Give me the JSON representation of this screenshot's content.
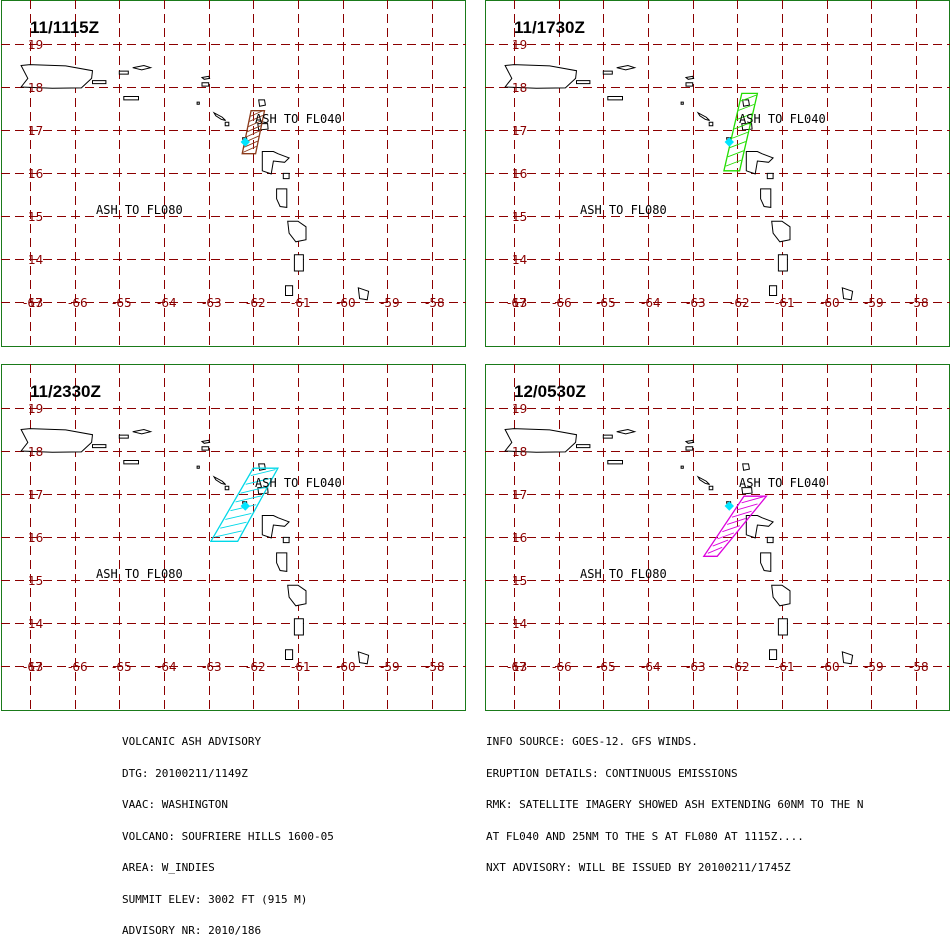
{
  "panels": [
    {
      "time": "11/1115Z",
      "plume_color": "#8b3a1a",
      "plume_name": "ash-plume-brown",
      "plume_quads": [
        [
          [
            -61.95,
            16.45
          ],
          [
            -62.25,
            16.45
          ],
          [
            -62.05,
            17.45
          ],
          [
            -61.75,
            17.45
          ]
        ]
      ],
      "vent_color": "#00e5ff"
    },
    {
      "time": "11/1730Z",
      "plume_color": "#22dd00",
      "plume_name": "ash-plume-green",
      "plume_quads": [
        [
          [
            -61.95,
            16.05
          ],
          [
            -62.3,
            16.05
          ],
          [
            -61.9,
            17.85
          ],
          [
            -61.55,
            17.85
          ]
        ]
      ],
      "vent_color": "#00e5ff"
    },
    {
      "time": "11/2330Z",
      "plume_color": "#00d8e8",
      "plume_name": "ash-plume-cyan",
      "plume_quads": [
        [
          [
            -62.35,
            15.9
          ],
          [
            -62.95,
            15.9
          ],
          [
            -62.0,
            17.6
          ],
          [
            -61.45,
            17.6
          ]
        ]
      ],
      "vent_color": "#00e5ff"
    },
    {
      "time": "12/0530Z",
      "plume_color": "#dd00dd",
      "plume_name": "ash-plume-magenta",
      "plume_quads": [
        [
          [
            -62.45,
            15.55
          ],
          [
            -62.75,
            15.55
          ],
          [
            -61.85,
            16.95
          ],
          [
            -61.35,
            16.95
          ]
        ]
      ],
      "vent_color": "#00e5ff"
    }
  ],
  "map": {
    "lat_labels": [
      "19",
      "18",
      "17",
      "16",
      "15",
      "14",
      "13"
    ],
    "lon_labels": [
      "-67",
      "-66",
      "-65",
      "-64",
      "-63",
      "-62",
      "-61",
      "-60",
      "-59",
      "-58"
    ],
    "label_fl040": "ASH TO FL040",
    "label_fl080": "ASH TO FL080",
    "grid_color": "#8b0000",
    "frame_color": "#1a7a1a"
  },
  "advisory": {
    "left_lines": [
      "VOLCANIC ASH ADVISORY",
      "DTG: 20100211/1149Z",
      "VAAC: WASHINGTON",
      "VOLCANO: SOUFRIERE HILLS 1600-05",
      "AREA: W_INDIES",
      "SUMMIT ELEV: 3002 FT (915 M)",
      "ADVISORY NR: 2010/186"
    ],
    "right_lines": [
      "INFO SOURCE: GOES-12. GFS WINDS.",
      "ERUPTION DETAILS: CONTINUOUS EMISSIONS",
      "RMK: SATELLITE IMAGERY SHOWED ASH EXTENDING 60NM TO THE N",
      "AT FL040 AND 25NM TO THE S AT FL080 AT 1115Z....",
      "NXT ADVISORY: WILL BE ISSUED BY 20100211/1745Z"
    ]
  }
}
